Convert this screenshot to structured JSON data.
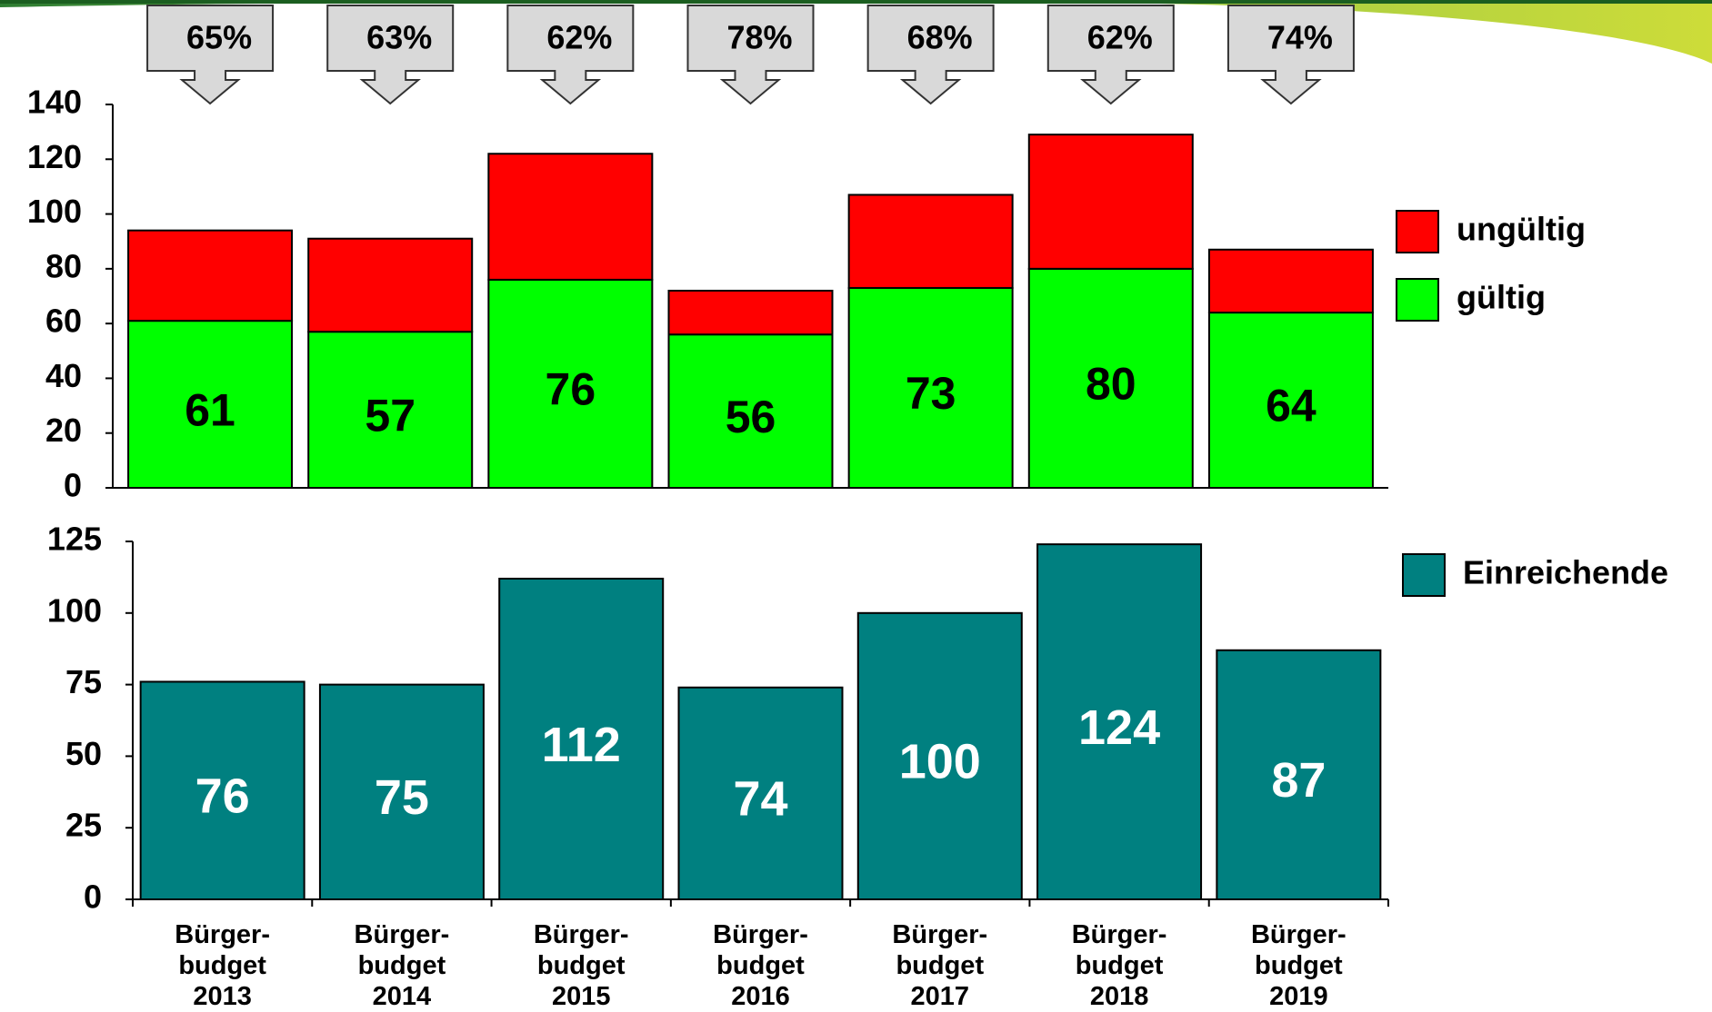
{
  "chart_data": [
    {
      "type": "stacked_bar",
      "categories": [
        "Bürger-\nbudget\n2013",
        "Bürger-\nbudget\n2014",
        "Bürger-\nbudget\n2015",
        "Bürger-\nbudget\n2016",
        "Bürger-\nbudget\n2017",
        "Bürger-\nbudget\n2018",
        "Bürger-\nbudget\n2019"
      ],
      "series": [
        {
          "name": "gültig",
          "color": "#00ff00",
          "values": [
            61,
            57,
            76,
            56,
            73,
            80,
            64
          ]
        },
        {
          "name": "ungültig",
          "color": "#ff0000",
          "values": [
            33,
            34,
            46,
            16,
            34,
            49,
            23
          ]
        }
      ],
      "callouts": {
        "values": [
          65,
          63,
          62,
          78,
          68,
          62,
          74
        ],
        "value_labels": [
          "65%",
          "63%",
          "62%",
          "78%",
          "68%",
          "62%",
          "74%"
        ]
      },
      "ylim": [
        0,
        140
      ],
      "yticks": [
        0,
        20,
        40,
        60,
        80,
        100,
        120,
        140
      ],
      "legend": "right"
    },
    {
      "type": "bar",
      "categories": [
        "Bürger-\nbudget\n2013",
        "Bürger-\nbudget\n2014",
        "Bürger-\nbudget\n2015",
        "Bürger-\nbudget\n2016",
        "Bürger-\nbudget\n2017",
        "Bürger-\nbudget\n2018",
        "Bürger-\nbudget\n2019"
      ],
      "series": [
        {
          "name": "Einreichende",
          "color": "#008080",
          "values": [
            76,
            75,
            112,
            74,
            100,
            124,
            87
          ]
        }
      ],
      "ylim": [
        0,
        125
      ],
      "yticks": [
        0,
        25,
        50,
        75,
        100,
        125
      ],
      "legend": "right"
    }
  ]
}
